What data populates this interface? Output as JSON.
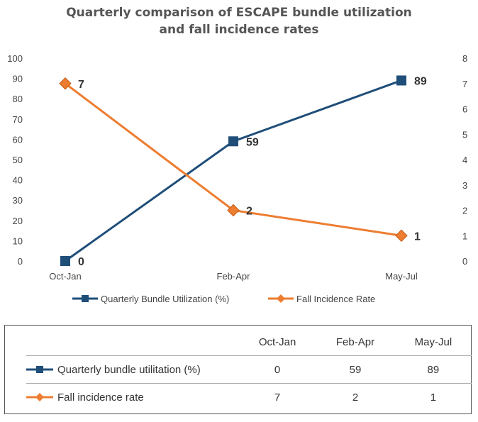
{
  "title_line1": "Quarterly comparison of ESCAPE bundle utilization",
  "title_line2": "and fall incidence rates",
  "chart_data": {
    "type": "line",
    "categories": [
      "Oct-Jan",
      "Feb-Apr",
      "May-Jul"
    ],
    "series": [
      {
        "name": "Quarterly Bundle Utilization (%)",
        "axis": "left",
        "color": "#1f4e79",
        "marker": "square",
        "values": [
          0,
          59,
          89
        ],
        "labels": [
          "0",
          "59",
          "89"
        ]
      },
      {
        "name": "Fall Incidence Rate",
        "axis": "right",
        "color": "#ed7d31",
        "marker": "diamond",
        "values": [
          7,
          2,
          1
        ],
        "labels": [
          "7",
          "2",
          "1"
        ]
      }
    ],
    "ylim_left": [
      0,
      100
    ],
    "yticks_left": [
      "0",
      "10",
      "20",
      "30",
      "40",
      "50",
      "60",
      "70",
      "80",
      "90",
      "100"
    ],
    "ylim_right": [
      0,
      8
    ],
    "yticks_right": [
      "0",
      "1",
      "2",
      "3",
      "4",
      "5",
      "6",
      "7",
      "8"
    ],
    "grid": false,
    "legend": "bottom"
  },
  "table": {
    "headers": [
      "Oct-Jan",
      "Feb-Apr",
      "May-Jul"
    ],
    "rows": [
      {
        "label": "Quarterly bundle utilitation (%)",
        "values": [
          "0",
          "59",
          "89"
        ]
      },
      {
        "label": "Fall incidence rate",
        "values": [
          "7",
          "2",
          "1"
        ]
      }
    ]
  },
  "colors": {
    "utilization": "#1f4e79",
    "falls": "#ed7d31"
  }
}
